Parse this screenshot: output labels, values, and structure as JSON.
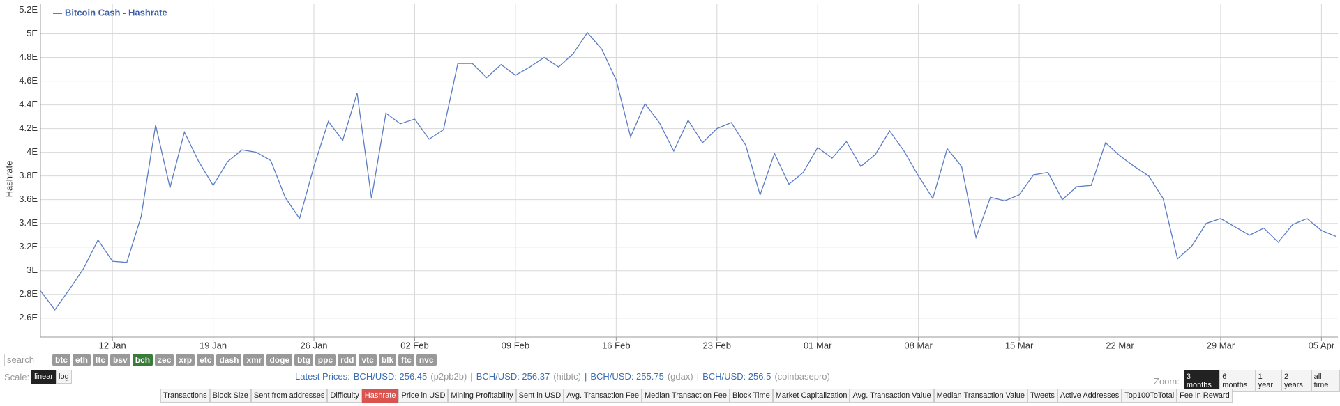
{
  "chart_data": {
    "type": "line",
    "x": [
      "07 Jan",
      "08 Jan",
      "09 Jan",
      "10 Jan",
      "11 Jan",
      "12 Jan",
      "13 Jan",
      "14 Jan",
      "15 Jan",
      "16 Jan",
      "17 Jan",
      "18 Jan",
      "19 Jan",
      "20 Jan",
      "21 Jan",
      "22 Jan",
      "23 Jan",
      "24 Jan",
      "25 Jan",
      "26 Jan",
      "27 Jan",
      "28 Jan",
      "29 Jan",
      "30 Jan",
      "31 Jan",
      "01 Feb",
      "02 Feb",
      "03 Feb",
      "04 Feb",
      "05 Feb",
      "06 Feb",
      "07 Feb",
      "08 Feb",
      "09 Feb",
      "10 Feb",
      "11 Feb",
      "12 Feb",
      "13 Feb",
      "14 Feb",
      "15 Feb",
      "16 Feb",
      "17 Feb",
      "18 Feb",
      "19 Feb",
      "20 Feb",
      "21 Feb",
      "22 Feb",
      "23 Feb",
      "24 Feb",
      "25 Feb",
      "26 Feb",
      "27 Feb",
      "28 Feb",
      "29 Feb",
      "01 Mar",
      "02 Mar",
      "03 Mar",
      "04 Mar",
      "05 Mar",
      "06 Mar",
      "07 Mar",
      "08 Mar",
      "09 Mar",
      "10 Mar",
      "11 Mar",
      "12 Mar",
      "13 Mar",
      "14 Mar",
      "15 Mar",
      "16 Mar",
      "17 Mar",
      "18 Mar",
      "19 Mar",
      "20 Mar",
      "21 Mar",
      "22 Mar",
      "23 Mar",
      "24 Mar",
      "25 Mar",
      "26 Mar",
      "27 Mar",
      "28 Mar",
      "29 Mar",
      "30 Mar",
      "31 Mar",
      "01 Apr",
      "02 Apr",
      "03 Apr",
      "04 Apr",
      "05 Apr",
      "06 Apr"
    ],
    "series": [
      {
        "name": "Bitcoin Cash - Hashrate",
        "color": "#5b7cc4",
        "values": [
          2.83,
          2.67,
          2.84,
          3.02,
          3.26,
          3.08,
          3.07,
          3.46,
          4.23,
          3.7,
          4.17,
          3.92,
          3.72,
          3.92,
          4.02,
          4.0,
          3.93,
          3.62,
          3.44,
          3.88,
          4.26,
          4.1,
          4.5,
          3.61,
          4.33,
          4.24,
          4.28,
          4.11,
          4.19,
          4.75,
          4.75,
          4.63,
          4.74,
          4.65,
          4.72,
          4.8,
          4.72,
          4.83,
          5.01,
          4.87,
          4.61,
          4.13,
          4.41,
          4.25,
          4.01,
          4.27,
          4.08,
          4.2,
          4.25,
          4.06,
          3.64,
          3.99,
          3.73,
          3.83,
          4.04,
          3.95,
          4.09,
          3.88,
          3.98,
          4.18,
          4.01,
          3.8,
          3.61,
          4.03,
          3.88,
          3.28,
          3.62,
          3.59,
          3.64,
          3.81,
          3.83,
          3.6,
          3.71,
          3.72,
          4.08,
          3.97,
          3.88,
          3.8,
          3.61,
          3.1,
          3.21,
          3.4,
          3.44,
          3.37,
          3.3,
          3.36,
          3.24,
          3.39,
          3.44,
          3.34,
          3.29
        ]
      }
    ],
    "xticks": [
      "12 Jan",
      "19 Jan",
      "26 Jan",
      "02 Feb",
      "09 Feb",
      "16 Feb",
      "23 Feb",
      "01 Mar",
      "08 Mar",
      "15 Mar",
      "22 Mar",
      "29 Mar",
      "05 Apr"
    ],
    "y_label": "Hashrate",
    "ylim": [
      2.44,
      5.25
    ],
    "yticks": [
      {
        "value": 2.6,
        "label": "2.6E"
      },
      {
        "value": 2.8,
        "label": "2.8E"
      },
      {
        "value": 3,
        "label": "3E"
      },
      {
        "value": 3.2,
        "label": "3.2E"
      },
      {
        "value": 3.4,
        "label": "3.4E"
      },
      {
        "value": 3.6,
        "label": "3.6E"
      },
      {
        "value": 3.8,
        "label": "3.8E"
      },
      {
        "value": 4,
        "label": "4E"
      },
      {
        "value": 4.2,
        "label": "4.2E"
      },
      {
        "value": 4.4,
        "label": "4.4E"
      },
      {
        "value": 4.6,
        "label": "4.6E"
      },
      {
        "value": 4.8,
        "label": "4.8E"
      },
      {
        "value": 5,
        "label": "5E"
      },
      {
        "value": 5.2,
        "label": "5.2E"
      }
    ],
    "grid": true,
    "legend": "top-left"
  },
  "controls": {
    "search_placeholder": "search",
    "coins": [
      "btc",
      "eth",
      "ltc",
      "bsv",
      "bch",
      "zec",
      "xrp",
      "etc",
      "dash",
      "xmr",
      "doge",
      "btg",
      "ppc",
      "rdd",
      "vtc",
      "blk",
      "ftc",
      "nvc"
    ],
    "active_coin": "bch",
    "scale": {
      "label": "Scale:",
      "options": [
        "linear",
        "log"
      ],
      "active": "linear"
    },
    "latest_prices": {
      "label": "Latest Prices:",
      "separator": "|",
      "items": [
        {
          "price": "BCH/USD: 256.45",
          "source": "(p2pb2b)"
        },
        {
          "price": "BCH/USD: 256.37",
          "source": "(hitbtc)"
        },
        {
          "price": "BCH/USD: 255.75",
          "source": "(gdax)"
        },
        {
          "price": "BCH/USD: 256.5",
          "source": "(coinbasepro)"
        }
      ]
    },
    "zoom": {
      "label": "Zoom:",
      "options": [
        "3 months",
        "6 months",
        "1 year",
        "2 years",
        "all time"
      ],
      "active": "3 months"
    },
    "tabs": {
      "options": [
        "Transactions",
        "Block Size",
        "Sent from addresses",
        "Difficulty",
        "Hashrate",
        "Price in USD",
        "Mining Profitability",
        "Sent in USD",
        "Avg. Transaction Fee",
        "Median Transaction Fee",
        "Block Time",
        "Market Capitalization",
        "Avg. Transaction Value",
        "Median Transaction Value",
        "Tweets",
        "Active Addresses",
        "Top100ToTotal",
        "Fee in Reward"
      ],
      "active": "Hashrate"
    }
  }
}
